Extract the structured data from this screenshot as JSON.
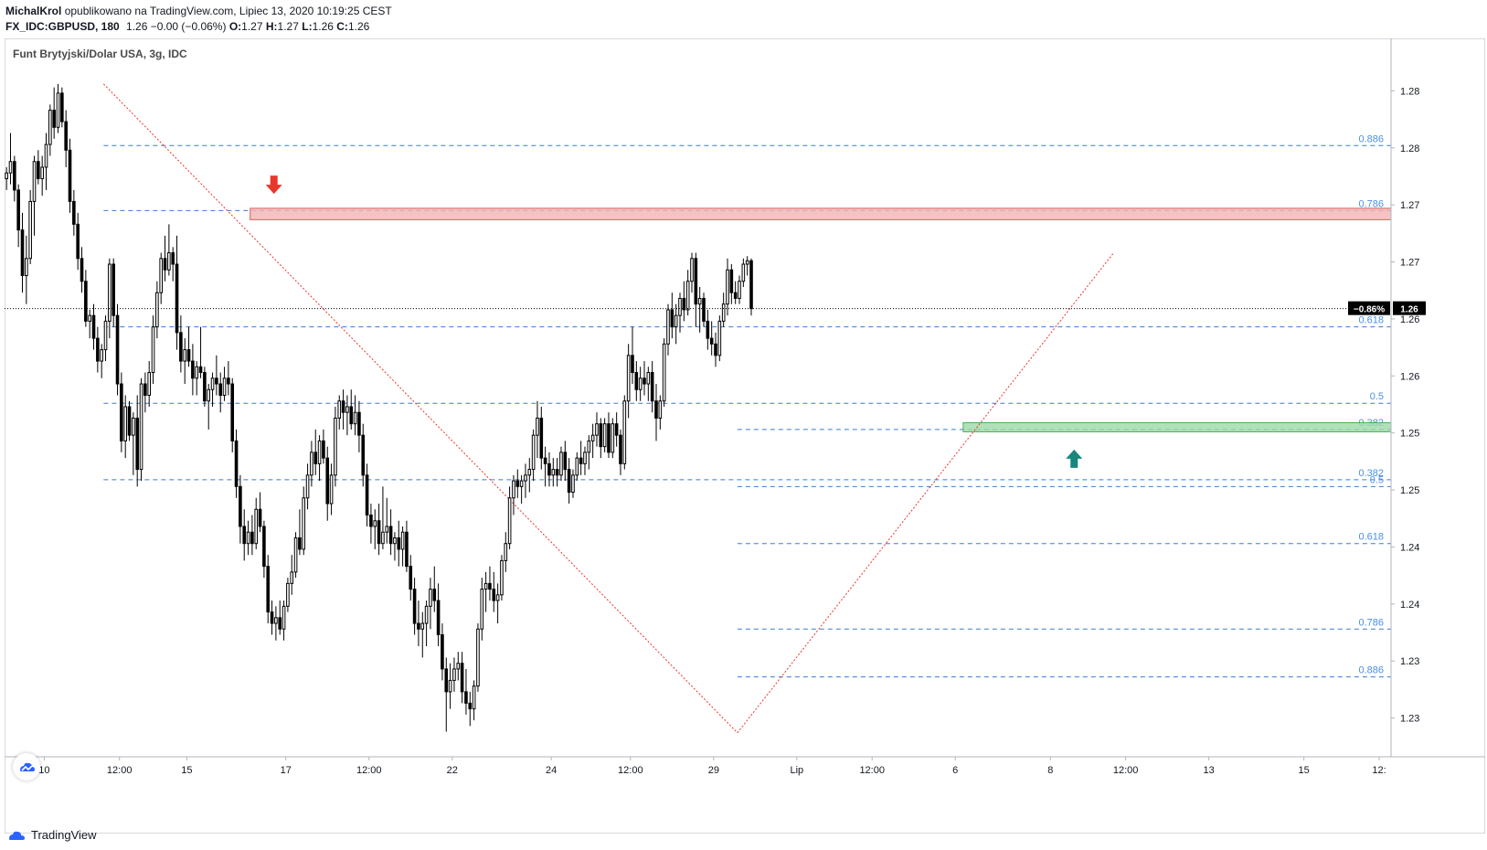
{
  "header": {
    "author": "MichalKrol",
    "published": "opublikowano na TradingView.com, Lipiec 13, 2020 10:19:25 CEST",
    "symbol": "FX_IDC:GBPUSD, 180",
    "quote": "1.26 −0.00 (−0.06%)",
    "ohlc_o_label": "O:",
    "ohlc_o": "1.27",
    "ohlc_h_label": "H:",
    "ohlc_h": "1.27",
    "ohlc_l_label": "L:",
    "ohlc_l": "1.26",
    "ohlc_c_label": "C:",
    "ohlc_c": "1.26"
  },
  "chart_title": "Funt Brytyjski/Dolar USA, 3g, IDC",
  "footer_brand": "TradingView",
  "colors": {
    "candle": "#000000",
    "fib": "#3a7bd5",
    "fib_label": "#4a90e2",
    "zigzag": "#e8372c",
    "resistance_zone": "#f4b4b4",
    "resistance_border": "#e05a5a",
    "support_zone": "#9ed9a6",
    "support_border": "#4caf50",
    "arrow_down": "#e8372c",
    "arrow_up": "#16877d"
  },
  "icons": {
    "arrow_down": "arrow-down-icon",
    "arrow_up": "arrow-up-icon",
    "logo": "tradingview-logo-icon"
  },
  "chart_data": {
    "type": "candlestick",
    "title": "Funt Brytyjski/Dolar USA, 3g, IDC",
    "y_tick_labels": [
      "1.28",
      "1.28",
      "1.27",
      "1.27",
      "1.26",
      "1.26",
      "1.25",
      "1.25",
      "1.24",
      "1.24",
      "1.23",
      "1.23"
    ],
    "y_ticks": [
      1.2827,
      1.2777,
      1.2727,
      1.2677,
      1.2627,
      1.2577,
      1.2527,
      1.2477,
      1.2427,
      1.2377,
      1.2327,
      1.2277
    ],
    "ylim": [
      1.2243,
      1.2873
    ],
    "x_tick_labels": [
      "10",
      "12:00",
      "15",
      "17",
      "12:00",
      "22",
      "24",
      "12:00",
      "29",
      "Lip",
      "12:00",
      "6",
      "8",
      "12:00",
      "13",
      "15",
      "12:"
    ],
    "x_tick_positions": [
      10,
      29,
      46,
      71,
      92,
      113,
      138,
      158,
      179,
      200,
      219,
      240,
      264,
      283,
      304,
      328,
      347
    ],
    "price_line": {
      "value": 1.2636,
      "label": "1.26",
      "change_label": "−0.86%"
    },
    "fib_levels": [
      {
        "ratio": "0.886",
        "price": 1.2779,
        "x_start": 25
      },
      {
        "ratio": "0.786",
        "price": 1.2722,
        "x_start": 25
      },
      {
        "ratio": "0.618",
        "price": 1.262,
        "x_start": 25
      },
      {
        "ratio": "0.5",
        "price": 1.2553,
        "x_start": 25
      },
      {
        "ratio": "0.382",
        "price": 1.2486,
        "x_start": 25
      },
      {
        "ratio": "0.382",
        "price": 1.253,
        "x_start": 185
      },
      {
        "ratio": "0.5",
        "price": 1.248,
        "x_start": 185
      },
      {
        "ratio": "0.618",
        "price": 1.243,
        "x_start": 185
      },
      {
        "ratio": "0.786",
        "price": 1.2355,
        "x_start": 185
      },
      {
        "ratio": "0.886",
        "price": 1.2313,
        "x_start": 185
      }
    ],
    "zigzag": [
      {
        "x": 25,
        "price": 1.2833
      },
      {
        "x": 185,
        "price": 1.2264
      },
      {
        "x": 280,
        "price": 1.2685
      }
    ],
    "zones": [
      {
        "name": "resistance",
        "x_start": 62,
        "price_top": 1.2724,
        "price_bottom": 1.2714
      },
      {
        "name": "support",
        "x_start": 242,
        "price_top": 1.2536,
        "price_bottom": 1.2528
      }
    ],
    "markers": [
      {
        "type": "arrow-down",
        "x": 68,
        "price": 1.2735
      },
      {
        "type": "arrow-up",
        "x": 270,
        "price": 1.2514
      }
    ],
    "candles_ohlc": [
      [
        1.275,
        1.276,
        1.274,
        1.2755
      ],
      [
        1.2755,
        1.279,
        1.2745,
        1.2765
      ],
      [
        1.2765,
        1.277,
        1.273,
        1.274
      ],
      [
        1.274,
        1.2745,
        1.269,
        1.2705
      ],
      [
        1.2705,
        1.272,
        1.265,
        1.2665
      ],
      [
        1.2665,
        1.27,
        1.264,
        1.268
      ],
      [
        1.268,
        1.274,
        1.2675,
        1.273
      ],
      [
        1.273,
        1.277,
        1.27,
        1.2765
      ],
      [
        1.2765,
        1.2775,
        1.2745,
        1.275
      ],
      [
        1.275,
        1.277,
        1.2735,
        1.276
      ],
      [
        1.276,
        1.279,
        1.274,
        1.278
      ],
      [
        1.278,
        1.2815,
        1.277,
        1.281
      ],
      [
        1.281,
        1.283,
        1.2785,
        1.2795
      ],
      [
        1.2795,
        1.2833,
        1.279,
        1.2825
      ],
      [
        1.2825,
        1.283,
        1.2795,
        1.28
      ],
      [
        1.28,
        1.281,
        1.276,
        1.2775
      ],
      [
        1.2775,
        1.2785,
        1.272,
        1.273
      ],
      [
        1.273,
        1.274,
        1.27,
        1.271
      ],
      [
        1.271,
        1.272,
        1.267,
        1.268
      ],
      [
        1.268,
        1.269,
        1.265,
        1.266
      ],
      [
        1.266,
        1.267,
        1.262,
        1.2625
      ],
      [
        1.2625,
        1.2635,
        1.261,
        1.263
      ],
      [
        1.263,
        1.264,
        1.26,
        1.261
      ],
      [
        1.261,
        1.262,
        1.258,
        1.259
      ],
      [
        1.259,
        1.2605,
        1.2575,
        1.26
      ],
      [
        1.26,
        1.263,
        1.259,
        1.2625
      ],
      [
        1.2625,
        1.268,
        1.261,
        1.2675
      ],
      [
        1.2675,
        1.268,
        1.262,
        1.263
      ],
      [
        1.263,
        1.264,
        1.256,
        1.257
      ],
      [
        1.257,
        1.258,
        1.251,
        1.252
      ],
      [
        1.252,
        1.256,
        1.2505,
        1.255
      ],
      [
        1.255,
        1.2555,
        1.252,
        1.2525
      ],
      [
        1.2525,
        1.2545,
        1.249,
        1.254
      ],
      [
        1.254,
        1.256,
        1.248,
        1.2495
      ],
      [
        1.2495,
        1.2575,
        1.2485,
        1.257
      ],
      [
        1.257,
        1.258,
        1.2545,
        1.256
      ],
      [
        1.256,
        1.259,
        1.255,
        1.258
      ],
      [
        1.258,
        1.263,
        1.257,
        1.262
      ],
      [
        1.262,
        1.266,
        1.261,
        1.265
      ],
      [
        1.265,
        1.2685,
        1.264,
        1.268
      ],
      [
        1.268,
        1.27,
        1.266,
        1.267
      ],
      [
        1.267,
        1.271,
        1.2665,
        1.2685
      ],
      [
        1.2685,
        1.269,
        1.266,
        1.2675
      ],
      [
        1.2675,
        1.27,
        1.26,
        1.2615
      ],
      [
        1.2615,
        1.263,
        1.258,
        1.259
      ],
      [
        1.259,
        1.261,
        1.257,
        1.26
      ],
      [
        1.26,
        1.262,
        1.2585,
        1.259
      ],
      [
        1.259,
        1.2605,
        1.256,
        1.2575
      ],
      [
        1.2575,
        1.259,
        1.256,
        1.2585
      ],
      [
        1.2585,
        1.262,
        1.2575,
        1.258
      ],
      [
        1.258,
        1.2585,
        1.255,
        1.2555
      ],
      [
        1.2555,
        1.257,
        1.253,
        1.2565
      ],
      [
        1.2565,
        1.258,
        1.255,
        1.2575
      ],
      [
        1.2575,
        1.2595,
        1.256,
        1.257
      ],
      [
        1.257,
        1.258,
        1.2545,
        1.256
      ],
      [
        1.256,
        1.2585,
        1.2555,
        1.2575
      ],
      [
        1.2575,
        1.259,
        1.256,
        1.257
      ],
      [
        1.257,
        1.2575,
        1.251,
        1.252
      ],
      [
        1.252,
        1.253,
        1.247,
        1.248
      ],
      [
        1.248,
        1.249,
        1.243,
        1.2445
      ],
      [
        1.2445,
        1.246,
        1.2415,
        1.243
      ],
      [
        1.243,
        1.245,
        1.242,
        1.244
      ],
      [
        1.244,
        1.2455,
        1.242,
        1.243
      ],
      [
        1.243,
        1.247,
        1.2425,
        1.246
      ],
      [
        1.246,
        1.2475,
        1.244,
        1.2445
      ],
      [
        1.2445,
        1.245,
        1.24,
        1.241
      ],
      [
        1.241,
        1.242,
        1.236,
        1.237
      ],
      [
        1.237,
        1.238,
        1.235,
        1.236
      ],
      [
        1.236,
        1.2375,
        1.2345,
        1.2365
      ],
      [
        1.2365,
        1.238,
        1.235,
        1.2355
      ],
      [
        1.2355,
        1.238,
        1.2345,
        1.2375
      ],
      [
        1.2375,
        1.24,
        1.237,
        1.2395
      ],
      [
        1.2395,
        1.242,
        1.2385,
        1.2405
      ],
      [
        1.2405,
        1.244,
        1.24,
        1.2435
      ],
      [
        1.2435,
        1.246,
        1.242,
        1.2425
      ],
      [
        1.2425,
        1.248,
        1.242,
        1.247
      ],
      [
        1.247,
        1.25,
        1.246,
        1.249
      ],
      [
        1.249,
        1.252,
        1.248,
        1.251
      ],
      [
        1.251,
        1.253,
        1.249,
        1.25
      ],
      [
        1.25,
        1.2525,
        1.2485,
        1.252
      ],
      [
        1.252,
        1.253,
        1.25,
        1.2505
      ],
      [
        1.2505,
        1.2515,
        1.245,
        1.2465
      ],
      [
        1.2465,
        1.25,
        1.2455,
        1.249
      ],
      [
        1.249,
        1.255,
        1.248,
        1.254
      ],
      [
        1.254,
        1.256,
        1.253,
        1.2555
      ],
      [
        1.2555,
        1.2565,
        1.253,
        1.2545
      ],
      [
        1.2545,
        1.256,
        1.2525,
        1.255
      ],
      [
        1.255,
        1.2565,
        1.253,
        1.2535
      ],
      [
        1.2535,
        1.256,
        1.2525,
        1.2545
      ],
      [
        1.2545,
        1.2555,
        1.251,
        1.2525
      ],
      [
        1.2525,
        1.2535,
        1.248,
        1.249
      ],
      [
        1.249,
        1.25,
        1.2445,
        1.2455
      ],
      [
        1.2455,
        1.2465,
        1.243,
        1.2445
      ],
      [
        1.2445,
        1.246,
        1.2425,
        1.245
      ],
      [
        1.245,
        1.2465,
        1.242,
        1.243
      ],
      [
        1.243,
        1.248,
        1.2425,
        1.244
      ],
      [
        1.244,
        1.247,
        1.243,
        1.2445
      ],
      [
        1.2445,
        1.246,
        1.242,
        1.243
      ],
      [
        1.243,
        1.244,
        1.2415,
        1.2435
      ],
      [
        1.2435,
        1.245,
        1.241,
        1.2425
      ],
      [
        1.2425,
        1.2445,
        1.241,
        1.244
      ],
      [
        1.244,
        1.245,
        1.2405,
        1.241
      ],
      [
        1.241,
        1.242,
        1.238,
        1.239
      ],
      [
        1.239,
        1.24,
        1.235,
        1.236
      ],
      [
        1.236,
        1.238,
        1.234,
        1.2355
      ],
      [
        1.2355,
        1.237,
        1.233,
        1.236
      ],
      [
        1.236,
        1.238,
        1.234,
        1.2375
      ],
      [
        1.2375,
        1.24,
        1.2355,
        1.239
      ],
      [
        1.239,
        1.241,
        1.237,
        1.238
      ],
      [
        1.238,
        1.2395,
        1.234,
        1.235
      ],
      [
        1.235,
        1.236,
        1.231,
        1.232
      ],
      [
        1.232,
        1.233,
        1.2265,
        1.23
      ],
      [
        1.23,
        1.2325,
        1.2285,
        1.231
      ],
      [
        1.231,
        1.233,
        1.23,
        1.232
      ],
      [
        1.232,
        1.2335,
        1.231,
        1.2325
      ],
      [
        1.2325,
        1.2335,
        1.229,
        1.23
      ],
      [
        1.23,
        1.232,
        1.228,
        1.229
      ],
      [
        1.229,
        1.23,
        1.227,
        1.2285
      ],
      [
        1.2285,
        1.231,
        1.2275,
        1.2305
      ],
      [
        1.2305,
        1.236,
        1.23,
        1.2355
      ],
      [
        1.2355,
        1.24,
        1.2345,
        1.239
      ],
      [
        1.239,
        1.2405,
        1.237,
        1.2395
      ],
      [
        1.2395,
        1.241,
        1.238,
        1.239
      ],
      [
        1.239,
        1.2405,
        1.237,
        1.238
      ],
      [
        1.238,
        1.2395,
        1.236,
        1.2385
      ],
      [
        1.2385,
        1.242,
        1.238,
        1.2415
      ],
      [
        1.2415,
        1.244,
        1.2405,
        1.243
      ],
      [
        1.243,
        1.248,
        1.2425,
        1.247
      ],
      [
        1.247,
        1.249,
        1.2455,
        1.2485
      ],
      [
        1.2485,
        1.2495,
        1.247,
        1.248
      ],
      [
        1.248,
        1.249,
        1.2465,
        1.2485
      ],
      [
        1.2485,
        1.25,
        1.247,
        1.249
      ],
      [
        1.249,
        1.2505,
        1.2475,
        1.2495
      ],
      [
        1.2495,
        1.253,
        1.2485,
        1.2525
      ],
      [
        1.2525,
        1.2555,
        1.2505,
        1.254
      ],
      [
        1.254,
        1.255,
        1.2495,
        1.2505
      ],
      [
        1.2505,
        1.2515,
        1.248,
        1.25
      ],
      [
        1.25,
        1.251,
        1.248,
        1.249
      ],
      [
        1.249,
        1.2505,
        1.248,
        1.2495
      ],
      [
        1.2495,
        1.2505,
        1.248,
        1.249
      ],
      [
        1.249,
        1.2515,
        1.2485,
        1.251
      ],
      [
        1.251,
        1.252,
        1.2485,
        1.2495
      ],
      [
        1.2495,
        1.2505,
        1.2465,
        1.2475
      ],
      [
        1.2475,
        1.2495,
        1.247,
        1.249
      ],
      [
        1.249,
        1.251,
        1.2485,
        1.2505
      ],
      [
        1.2505,
        1.252,
        1.249,
        1.25
      ],
      [
        1.25,
        1.2515,
        1.249,
        1.251
      ],
      [
        1.251,
        1.2525,
        1.2495,
        1.252
      ],
      [
        1.252,
        1.2535,
        1.2505,
        1.2525
      ],
      [
        1.2525,
        1.2545,
        1.2515,
        1.2535
      ],
      [
        1.2535,
        1.254,
        1.2505,
        1.2515
      ],
      [
        1.2515,
        1.254,
        1.251,
        1.2535
      ],
      [
        1.2535,
        1.2545,
        1.2505,
        1.251
      ],
      [
        1.251,
        1.254,
        1.2505,
        1.2535
      ],
      [
        1.2535,
        1.2545,
        1.2515,
        1.2525
      ],
      [
        1.2525,
        1.253,
        1.249,
        1.25
      ],
      [
        1.25,
        1.256,
        1.2495,
        1.2555
      ],
      [
        1.2555,
        1.2605,
        1.254,
        1.2595
      ],
      [
        1.2595,
        1.262,
        1.257,
        1.258
      ],
      [
        1.258,
        1.259,
        1.2555,
        1.2565
      ],
      [
        1.2565,
        1.2585,
        1.2555,
        1.2575
      ],
      [
        1.2575,
        1.259,
        1.256,
        1.257
      ],
      [
        1.257,
        1.2585,
        1.2555,
        1.258
      ],
      [
        1.258,
        1.259,
        1.2545,
        1.2555
      ],
      [
        1.2555,
        1.257,
        1.252,
        1.254
      ],
      [
        1.254,
        1.256,
        1.253,
        1.2555
      ],
      [
        1.2555,
        1.261,
        1.255,
        1.2605
      ],
      [
        1.2605,
        1.264,
        1.2595,
        1.2635
      ],
      [
        1.2635,
        1.265,
        1.261,
        1.262
      ],
      [
        1.262,
        1.264,
        1.2605,
        1.263
      ],
      [
        1.263,
        1.265,
        1.2615,
        1.2645
      ],
      [
        1.2645,
        1.266,
        1.2625,
        1.2635
      ],
      [
        1.2635,
        1.267,
        1.263,
        1.266
      ],
      [
        1.266,
        1.2685,
        1.265,
        1.268
      ],
      [
        1.268,
        1.2685,
        1.262,
        1.264
      ],
      [
        1.264,
        1.2655,
        1.2615,
        1.2645
      ],
      [
        1.2645,
        1.265,
        1.262,
        1.2625
      ],
      [
        1.2625,
        1.2635,
        1.26,
        1.261
      ],
      [
        1.261,
        1.2625,
        1.2595,
        1.2605
      ],
      [
        1.2605,
        1.2615,
        1.2585,
        1.2595
      ],
      [
        1.2595,
        1.263,
        1.259,
        1.2625
      ],
      [
        1.2625,
        1.265,
        1.262,
        1.264
      ],
      [
        1.264,
        1.268,
        1.263,
        1.267
      ],
      [
        1.267,
        1.2675,
        1.264,
        1.265
      ],
      [
        1.265,
        1.266,
        1.264,
        1.2645
      ],
      [
        1.2645,
        1.2665,
        1.264,
        1.266
      ],
      [
        1.266,
        1.268,
        1.2655,
        1.2675
      ],
      [
        1.2675,
        1.2682,
        1.2665,
        1.2678
      ],
      [
        1.2678,
        1.268,
        1.263,
        1.2636
      ]
    ]
  }
}
